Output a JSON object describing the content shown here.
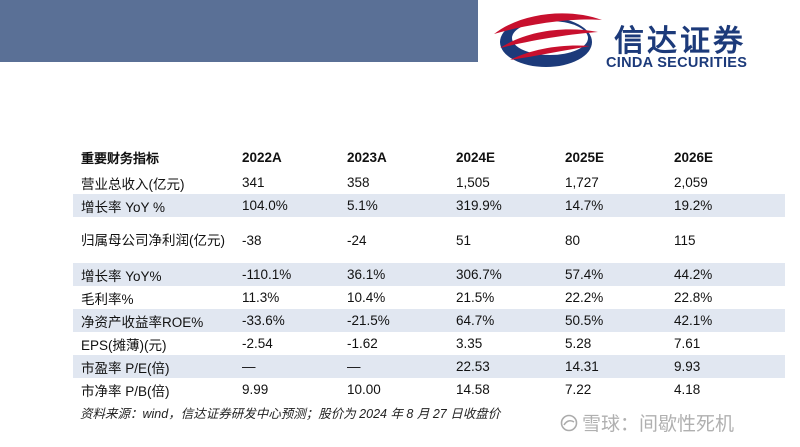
{
  "logo": {
    "cn": "信达证券",
    "en": "CINDA SECURITIES",
    "colors": {
      "red": "#c8102e",
      "navy": "#1c3a7a"
    }
  },
  "table": {
    "headers": [
      "重要财务指标",
      "2022A",
      "2023A",
      "2024E",
      "2025E",
      "2026E"
    ],
    "rows": [
      {
        "label": "营业总收入(亿元)",
        "values": [
          "341",
          "358",
          "1,505",
          "1,727",
          "2,059"
        ]
      },
      {
        "label": "增长率 YoY %",
        "values": [
          "104.0%",
          "5.1%",
          "319.9%",
          "14.7%",
          "19.2%"
        ]
      },
      {
        "label": "归属母公司净利润(亿元)",
        "values": [
          "-38",
          "-24",
          "51",
          "80",
          "115"
        ]
      },
      {
        "label": "增长率 YoY%",
        "values": [
          "-110.1%",
          "36.1%",
          "306.7%",
          "57.4%",
          "44.2%"
        ]
      },
      {
        "label": "毛利率%",
        "values": [
          "11.3%",
          "10.4%",
          "21.5%",
          "22.2%",
          "22.8%"
        ]
      },
      {
        "label": "净资产收益率ROE%",
        "values": [
          "-33.6%",
          "-21.5%",
          "64.7%",
          "50.5%",
          "42.1%"
        ]
      },
      {
        "label": "EPS(摊薄)(元)",
        "values": [
          "-2.54",
          "-1.62",
          "3.35",
          "5.28",
          "7.61"
        ]
      },
      {
        "label": "市盈率 P/E(倍)",
        "values": [
          "—",
          "—",
          "22.53",
          "14.31",
          "9.93"
        ]
      },
      {
        "label": "市净率 P/B(倍)",
        "values": [
          "9.99",
          "10.00",
          "14.58",
          "7.22",
          "4.18"
        ]
      }
    ],
    "shade_color": "#e1e7f1"
  },
  "source": "资料来源：wind，信达证券研发中心预测；股价为 2024 年 8 月 27 日收盘价",
  "watermark": {
    "text": "雪球：间歇性死机",
    "icon": "snowball-icon"
  }
}
